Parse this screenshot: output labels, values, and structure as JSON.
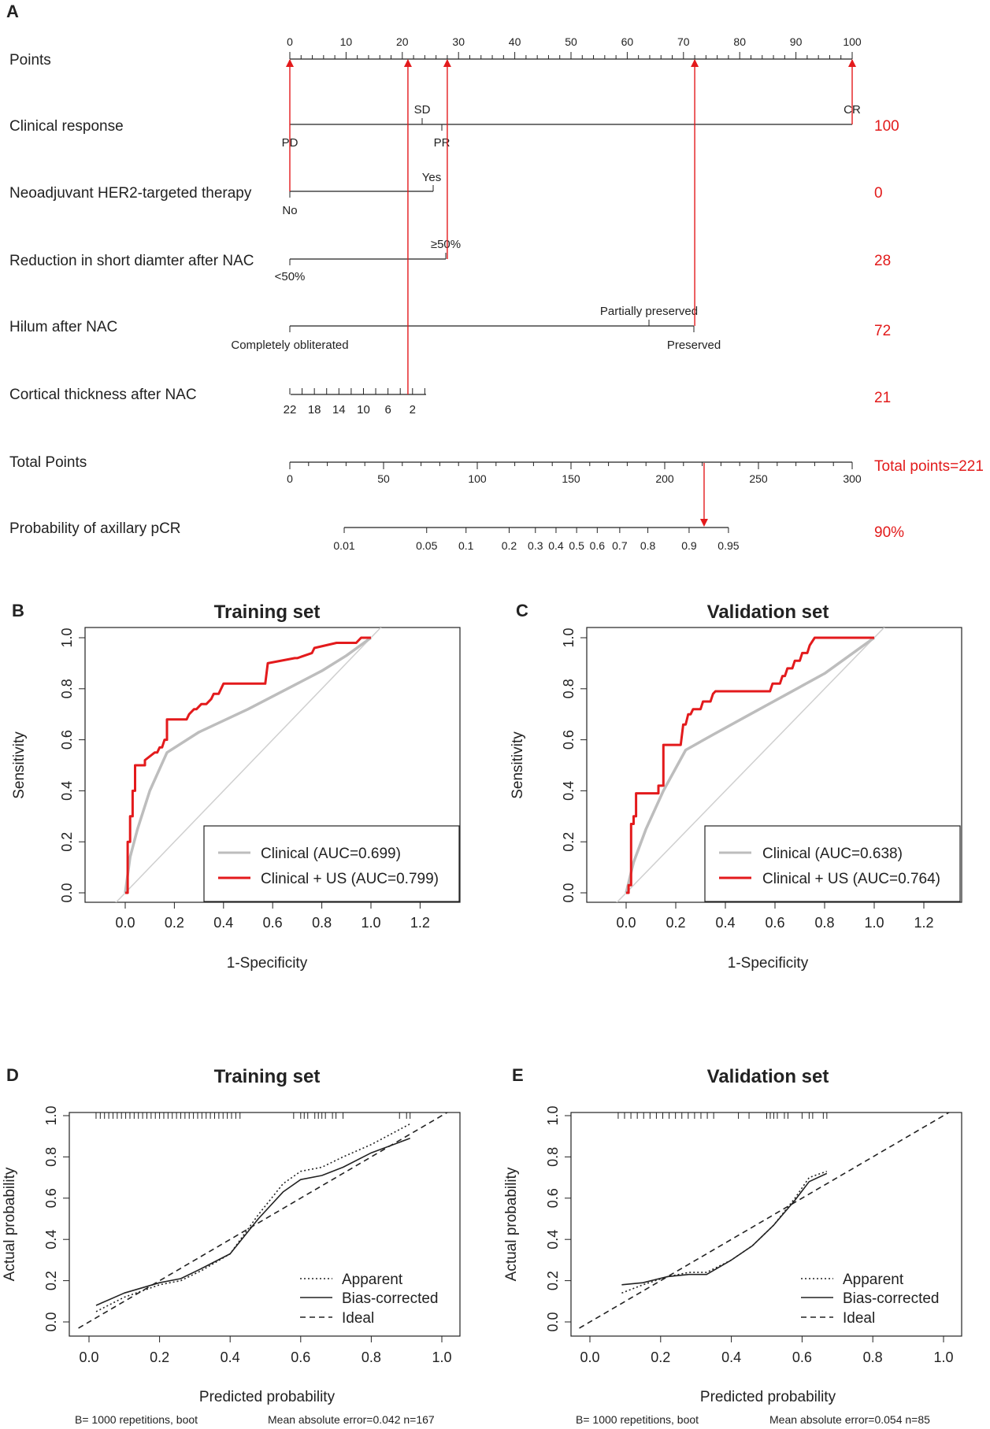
{
  "panels": {
    "A": "A",
    "B": "B",
    "C": "C",
    "D": "D",
    "E": "E"
  },
  "nomogram": {
    "points_label": "Points",
    "points_ticks": [
      "0",
      "10",
      "20",
      "30",
      "40",
      "50",
      "60",
      "70",
      "80",
      "90",
      "100"
    ],
    "rows": [
      {
        "label": "Clinical response",
        "score": "100"
      },
      {
        "label": "Neoadjuvant HER2-targeted therapy",
        "score": "0"
      },
      {
        "label": "Reduction in short diamter after NAC",
        "score": "28"
      },
      {
        "label": "Hilum after NAC",
        "score": "72"
      },
      {
        "label": "Cortical thickness after NAC",
        "score": "21"
      }
    ],
    "clinical_levels": {
      "PD": "PD",
      "SD": "SD",
      "PR": "PR",
      "CR": "CR"
    },
    "her2_levels": {
      "no": "No",
      "yes": "Yes"
    },
    "reduction_levels": {
      "lt": "<50%",
      "ge": "≥50%"
    },
    "hilum_levels": {
      "obl": "Completely obliterated",
      "partial": "Partially preserved",
      "pres": "Preserved"
    },
    "cortical_ticks": [
      "22",
      "18",
      "14",
      "10",
      "6",
      "2"
    ],
    "total_label": "Total Points",
    "total_ticks": [
      "0",
      "50",
      "100",
      "150",
      "200",
      "250",
      "300"
    ],
    "total_score": "Total points=221",
    "prob_label": "Probability of axillary pCR",
    "prob_ticks": [
      "0.01",
      "0.05",
      "0.1",
      "0.2",
      "0.3",
      "0.4",
      "0.5",
      "0.6",
      "0.7",
      "0.8",
      "0.9",
      "0.95"
    ],
    "prob_score": "90%"
  },
  "roc": {
    "train_title": "Training set",
    "valid_title": "Validation set",
    "xlabel": "1-Specificity",
    "ylabel": "Sensitivity",
    "xticks": [
      "0.0",
      "0.2",
      "0.4",
      "0.6",
      "0.8",
      "1.0",
      "1.2"
    ],
    "yticks": [
      "0.0",
      "0.2",
      "0.4",
      "0.6",
      "0.8",
      "1.0"
    ],
    "train_legend": [
      "Clinical (AUC=0.699)",
      "Clinical + US (AUC=0.799)"
    ],
    "valid_legend": [
      "Clinical (AUC=0.638)",
      "Clinical + US (AUC=0.764)"
    ],
    "colors": {
      "clinical": "#bdbdbd",
      "clinical_us": "#e31a1c"
    }
  },
  "calib": {
    "train_title": "Training set",
    "valid_title": "Validation set",
    "xlabel": "Predicted probability",
    "ylabel": "Actual probability",
    "xticks": [
      "0.0",
      "0.2",
      "0.4",
      "0.6",
      "0.8",
      "1.0"
    ],
    "yticks": [
      "0.0",
      "0.2",
      "0.4",
      "0.6",
      "0.8",
      "1.0"
    ],
    "legend": [
      "Apparent",
      "Bias-corrected",
      "Ideal"
    ],
    "train_footer_left": "B= 1000 repetitions, boot",
    "train_footer_right": "Mean absolute error=0.042 n=167",
    "valid_footer_left": "B= 1000 repetitions, boot",
    "valid_footer_right": "Mean absolute error=0.054 n=85"
  },
  "chart_data": [
    {
      "type": "nomogram",
      "title": "",
      "points_range": [
        0,
        100
      ],
      "variables": [
        {
          "name": "Clinical response",
          "levels": [
            {
              "label": "PD",
              "points": 0
            },
            {
              "label": "SD",
              "points": 23.5
            },
            {
              "label": "PR",
              "points": 27
            },
            {
              "label": "CR",
              "points": 100
            }
          ],
          "selected_points": 100
        },
        {
          "name": "Neoadjuvant HER2-targeted therapy",
          "levels": [
            {
              "label": "No",
              "points": 0
            },
            {
              "label": "Yes",
              "points": 25.5
            }
          ],
          "selected_points": 0
        },
        {
          "name": "Reduction in short diamter after NAC",
          "levels": [
            {
              "label": "<50%",
              "points": 0
            },
            {
              "label": "≥50%",
              "points": 28
            }
          ],
          "selected_points": 28
        },
        {
          "name": "Hilum after NAC",
          "levels": [
            {
              "label": "Completely obliterated",
              "points": 0
            },
            {
              "label": "Partially preserved",
              "points": 64
            },
            {
              "label": "Preserved",
              "points": 72
            }
          ],
          "selected_points": 72
        },
        {
          "name": "Cortical thickness after NAC",
          "range_mm": [
            22,
            2
          ],
          "points_range": [
            0,
            24
          ],
          "selected_points": 21
        }
      ],
      "total_points_range": [
        0,
        300
      ],
      "total_points": 221,
      "probability_ticks": [
        0.01,
        0.05,
        0.1,
        0.2,
        0.3,
        0.4,
        0.5,
        0.6,
        0.7,
        0.8,
        0.9,
        0.95
      ],
      "probability_tick_points": [
        29,
        73,
        94,
        117,
        131,
        142,
        153,
        164,
        176,
        191,
        213,
        234
      ],
      "predicted_probability": 0.9
    },
    {
      "type": "line",
      "title": "Training set",
      "xlabel": "1-Specificity",
      "ylabel": "Sensitivity",
      "xlim": [
        -0.1,
        1.3
      ],
      "ylim": [
        0,
        1.0
      ],
      "series": [
        {
          "name": "Clinical (AUC=0.699)",
          "color": "#bdbdbd",
          "x": [
            0,
            0.02,
            0.05,
            0.1,
            0.17,
            0.3,
            0.5,
            0.7,
            0.8,
            0.9,
            1.0
          ],
          "y": [
            0,
            0.14,
            0.25,
            0.4,
            0.55,
            0.63,
            0.72,
            0.82,
            0.87,
            0.93,
            1.0
          ]
        },
        {
          "name": "Clinical + US (AUC=0.799)",
          "color": "#e31a1c",
          "x": [
            0,
            0.01,
            0.01,
            0.02,
            0.02,
            0.03,
            0.03,
            0.04,
            0.04,
            0.08,
            0.08,
            0.12,
            0.13,
            0.14,
            0.15,
            0.16,
            0.17,
            0.17,
            0.25,
            0.26,
            0.28,
            0.29,
            0.31,
            0.33,
            0.35,
            0.36,
            0.38,
            0.4,
            0.57,
            0.58,
            0.69,
            0.7,
            0.76,
            0.77,
            0.86,
            0.94,
            0.96,
            1.0
          ],
          "y": [
            0,
            0,
            0.2,
            0.2,
            0.3,
            0.3,
            0.4,
            0.4,
            0.5,
            0.5,
            0.52,
            0.55,
            0.55,
            0.57,
            0.57,
            0.6,
            0.6,
            0.68,
            0.68,
            0.7,
            0.72,
            0.72,
            0.74,
            0.74,
            0.76,
            0.78,
            0.78,
            0.82,
            0.82,
            0.9,
            0.92,
            0.92,
            0.94,
            0.96,
            0.98,
            0.98,
            1.0,
            1.0
          ]
        },
        {
          "name": "Reference",
          "color": "#cccccc",
          "x": [
            -0.05,
            1.05
          ],
          "y": [
            -0.05,
            1.05
          ]
        }
      ]
    },
    {
      "type": "line",
      "title": "Validation set",
      "xlabel": "1-Specificity",
      "ylabel": "Sensitivity",
      "xlim": [
        -0.1,
        1.3
      ],
      "ylim": [
        0,
        1.0
      ],
      "series": [
        {
          "name": "Clinical (AUC=0.638)",
          "color": "#bdbdbd",
          "x": [
            0,
            0.03,
            0.08,
            0.15,
            0.24,
            0.35,
            0.5,
            0.65,
            0.8,
            0.9,
            1.0
          ],
          "y": [
            0,
            0.12,
            0.25,
            0.4,
            0.56,
            0.62,
            0.7,
            0.78,
            0.86,
            0.93,
            1.0
          ]
        },
        {
          "name": "Clinical + US (AUC=0.764)",
          "color": "#e31a1c",
          "x": [
            0,
            0.01,
            0.01,
            0.02,
            0.02,
            0.03,
            0.03,
            0.04,
            0.04,
            0.13,
            0.13,
            0.15,
            0.15,
            0.22,
            0.23,
            0.24,
            0.25,
            0.26,
            0.27,
            0.3,
            0.31,
            0.34,
            0.35,
            0.36,
            0.58,
            0.59,
            0.62,
            0.63,
            0.64,
            0.65,
            0.67,
            0.68,
            0.7,
            0.71,
            0.73,
            0.74,
            0.76,
            1.0
          ],
          "y": [
            0,
            0,
            0.03,
            0.03,
            0.27,
            0.27,
            0.3,
            0.3,
            0.39,
            0.39,
            0.42,
            0.42,
            0.58,
            0.58,
            0.66,
            0.66,
            0.7,
            0.7,
            0.72,
            0.72,
            0.75,
            0.75,
            0.78,
            0.79,
            0.79,
            0.82,
            0.82,
            0.85,
            0.85,
            0.88,
            0.88,
            0.91,
            0.91,
            0.94,
            0.94,
            0.97,
            1.0,
            1.0
          ]
        },
        {
          "name": "Reference",
          "color": "#cccccc",
          "x": [
            -0.05,
            1.05
          ],
          "y": [
            -0.05,
            1.05
          ]
        }
      ]
    },
    {
      "type": "line",
      "title": "Training set",
      "xlabel": "Predicted probability",
      "ylabel": "Actual probability",
      "xlim": [
        -0.05,
        1.05
      ],
      "ylim": [
        0,
        1.0
      ],
      "series": [
        {
          "name": "Apparent",
          "style": "dotted",
          "x": [
            0.02,
            0.1,
            0.2,
            0.26,
            0.32,
            0.4,
            0.48,
            0.55,
            0.6,
            0.66,
            0.72,
            0.8,
            0.91
          ],
          "y": [
            0.05,
            0.12,
            0.18,
            0.2,
            0.25,
            0.33,
            0.52,
            0.67,
            0.73,
            0.75,
            0.8,
            0.86,
            0.96
          ]
        },
        {
          "name": "Bias-corrected",
          "style": "solid",
          "x": [
            0.02,
            0.1,
            0.2,
            0.26,
            0.32,
            0.4,
            0.48,
            0.55,
            0.6,
            0.66,
            0.72,
            0.8,
            0.91
          ],
          "y": [
            0.08,
            0.14,
            0.19,
            0.21,
            0.26,
            0.33,
            0.5,
            0.63,
            0.69,
            0.71,
            0.75,
            0.82,
            0.89
          ]
        },
        {
          "name": "Ideal",
          "style": "dashed",
          "x": [
            -0.03,
            1.03
          ],
          "y": [
            -0.03,
            1.03
          ]
        }
      ],
      "footer": [
        "B= 1000 repetitions, boot",
        "Mean absolute error=0.042 n=167"
      ]
    },
    {
      "type": "line",
      "title": "Validation set",
      "xlabel": "Predicted probability",
      "ylabel": "Actual probability",
      "xlim": [
        -0.05,
        1.05
      ],
      "ylim": [
        0,
        1.0
      ],
      "series": [
        {
          "name": "Apparent",
          "style": "dotted",
          "x": [
            0.09,
            0.15,
            0.22,
            0.28,
            0.33,
            0.4,
            0.46,
            0.52,
            0.58,
            0.62,
            0.67
          ],
          "y": [
            0.14,
            0.18,
            0.22,
            0.24,
            0.24,
            0.3,
            0.37,
            0.47,
            0.6,
            0.7,
            0.73
          ]
        },
        {
          "name": "Bias-corrected",
          "style": "solid",
          "x": [
            0.09,
            0.15,
            0.22,
            0.28,
            0.33,
            0.4,
            0.46,
            0.52,
            0.58,
            0.62,
            0.67
          ],
          "y": [
            0.18,
            0.19,
            0.22,
            0.23,
            0.23,
            0.3,
            0.37,
            0.47,
            0.59,
            0.68,
            0.72
          ]
        },
        {
          "name": "Ideal",
          "style": "dashed",
          "x": [
            -0.03,
            1.03
          ],
          "y": [
            -0.03,
            1.03
          ]
        }
      ],
      "footer": [
        "B= 1000 repetitions, boot",
        "Mean absolute error=0.054 n=85"
      ]
    }
  ]
}
